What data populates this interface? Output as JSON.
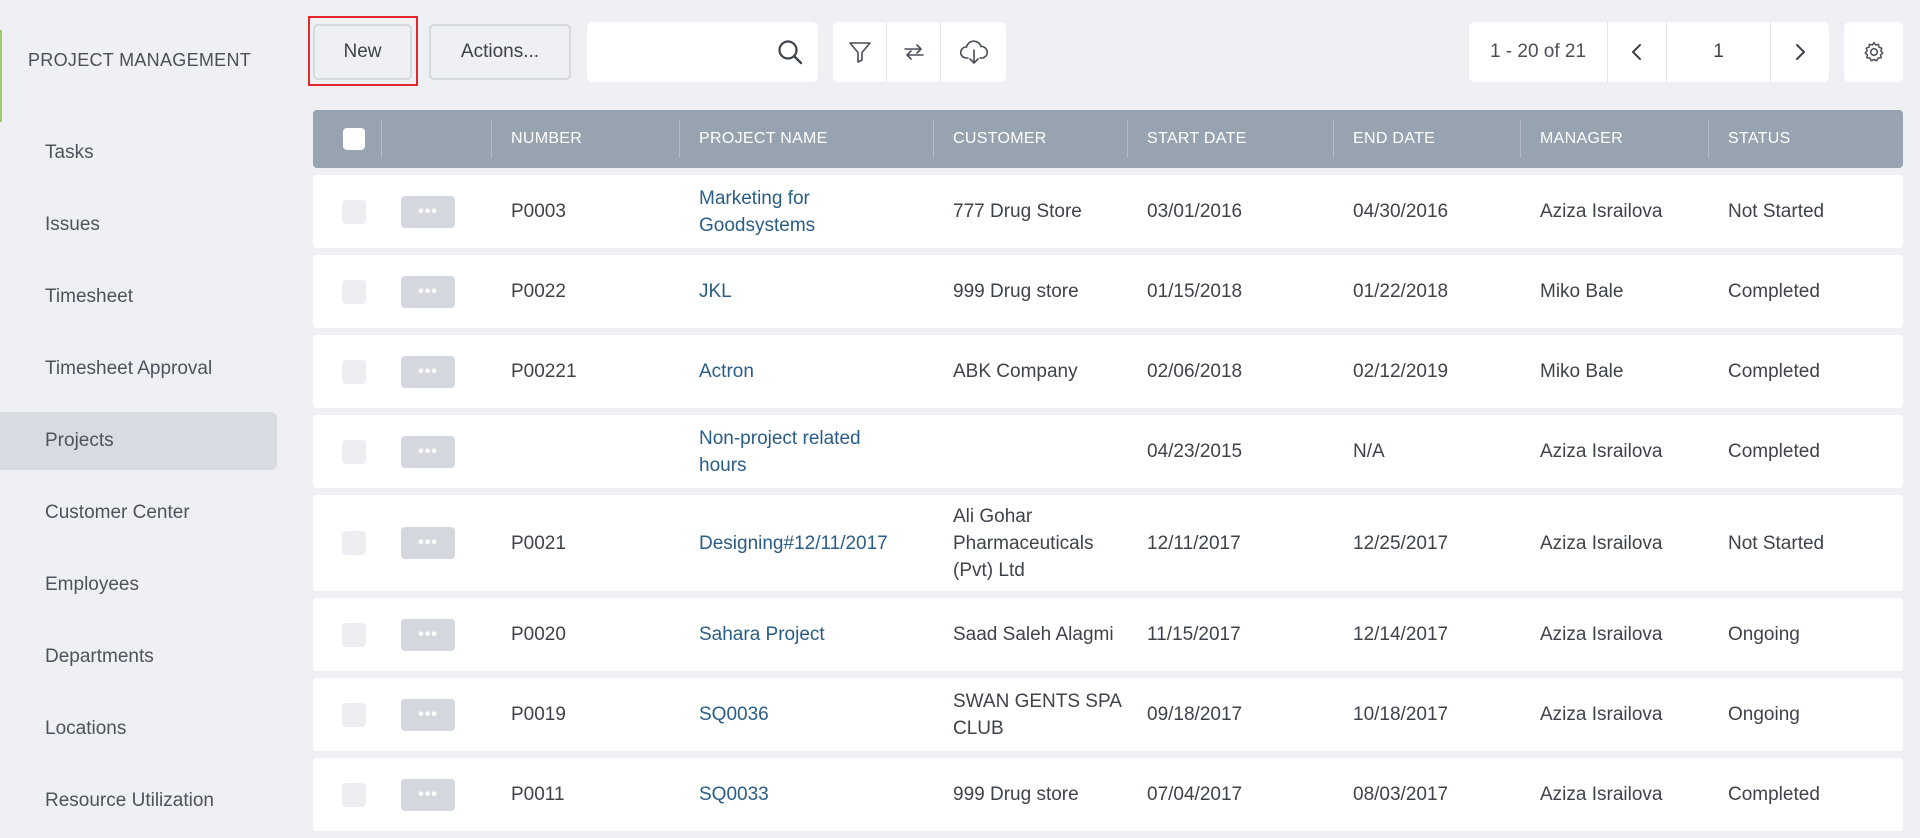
{
  "sidebar": {
    "title": "PROJECT MANAGEMENT",
    "items": [
      {
        "label": "Tasks",
        "active": false
      },
      {
        "label": "Issues",
        "active": false
      },
      {
        "label": "Timesheet",
        "active": false
      },
      {
        "label": "Timesheet Approval",
        "active": false
      },
      {
        "label": "Projects",
        "active": true
      },
      {
        "label": "Customer Center",
        "active": false
      },
      {
        "label": "Employees",
        "active": false
      },
      {
        "label": "Departments",
        "active": false
      },
      {
        "label": "Locations",
        "active": false
      },
      {
        "label": "Resource Utilization",
        "active": false
      }
    ]
  },
  "toolbar": {
    "new_label": "New",
    "actions_label": "Actions...",
    "search_value": "",
    "search_placeholder": ""
  },
  "pager": {
    "range": "1 - 20 of 21",
    "page": "1"
  },
  "table": {
    "columns": [
      "NUMBER",
      "PROJECT NAME",
      "CUSTOMER",
      "START DATE",
      "END DATE",
      "MANAGER",
      "STATUS"
    ],
    "row_menu_label": "•••",
    "rows": [
      {
        "number": "P0003",
        "name": "Marketing for Goodsystems",
        "customer": "777 Drug Store",
        "start": "03/01/2016",
        "end": "04/30/2016",
        "manager": "Aziza Israilova",
        "status": "Not Started"
      },
      {
        "number": "P0022",
        "name": "JKL",
        "customer": "999 Drug store",
        "start": "01/15/2018",
        "end": "01/22/2018",
        "manager": "Miko Bale",
        "status": "Completed"
      },
      {
        "number": "P00221",
        "name": "Actron",
        "customer": "ABK Company",
        "start": "02/06/2018",
        "end": "02/12/2019",
        "manager": "Miko Bale",
        "status": "Completed"
      },
      {
        "number": "",
        "name": "Non-project related hours",
        "customer": "",
        "start": "04/23/2015",
        "end": "N/A",
        "manager": "Aziza Israilova",
        "status": "Completed"
      },
      {
        "number": "P0021",
        "name": "Designing#12/11/2017",
        "customer": "Ali Gohar Pharmaceuticals (Pvt) Ltd",
        "start": "12/11/2017",
        "end": "12/25/2017",
        "manager": "Aziza Israilova",
        "status": "Not Started"
      },
      {
        "number": "P0020",
        "name": "Sahara Project",
        "customer": "Saad Saleh Alagmi",
        "start": "11/15/2017",
        "end": "12/14/2017",
        "manager": "Aziza Israilova",
        "status": "Ongoing"
      },
      {
        "number": "P0019",
        "name": "SQ0036",
        "customer": "SWAN GENTS SPA CLUB",
        "start": "09/18/2017",
        "end": "10/18/2017",
        "manager": "Aziza Israilova",
        "status": "Ongoing"
      },
      {
        "number": "P0011",
        "name": "SQ0033",
        "customer": "999 Drug store",
        "start": "07/04/2017",
        "end": "08/03/2017",
        "manager": "Aziza Israilova",
        "status": "Completed"
      }
    ]
  }
}
